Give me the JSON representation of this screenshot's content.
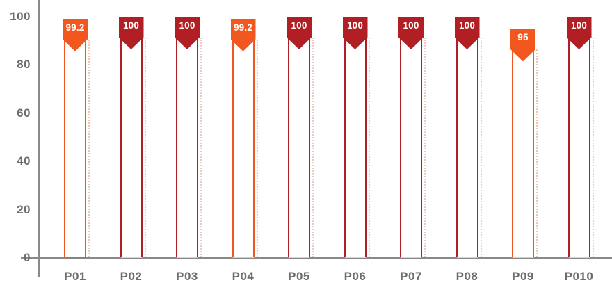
{
  "palette": {
    "orange": "#F1571E",
    "red": "#B11E23",
    "orange_tint": "#F9C4A5",
    "red_tint": "#F0C8C5",
    "axis": "#87898B",
    "label_gray": "#6A6C6E",
    "flag_text": "#FFFFFF",
    "bar_fill": "#FFFFFF"
  },
  "chart_data": {
    "type": "bar",
    "title": "",
    "xlabel": "",
    "ylabel": "",
    "categories": [
      "P01",
      "P02",
      "P03",
      "P04",
      "P05",
      "P06",
      "P07",
      "P08",
      "P09",
      "P010"
    ],
    "values": [
      99.2,
      100,
      100,
      99.2,
      100,
      100,
      100,
      100,
      95,
      100
    ],
    "value_labels": [
      "99.2",
      "100",
      "100",
      "99.2",
      "100",
      "100",
      "100",
      "100",
      "95",
      "100"
    ],
    "bar_color_names": [
      "orange",
      "red",
      "red",
      "orange",
      "red",
      "red",
      "red",
      "red",
      "orange",
      "red"
    ],
    "bottom_border": [
      "solid",
      "tint",
      "tint",
      "tint",
      "tint",
      "tint",
      "tint",
      "tint",
      "tint",
      "tint"
    ],
    "ylim": [
      0,
      100
    ],
    "yticks": [
      0,
      20,
      40,
      60,
      80,
      100
    ],
    "ytick_labels": [
      "0",
      "20",
      "40",
      "60",
      "80",
      "100"
    ],
    "grid": false,
    "legend": "none",
    "bar_style": "outlined bar with dotted shadow line and ribbon flag showing value"
  }
}
